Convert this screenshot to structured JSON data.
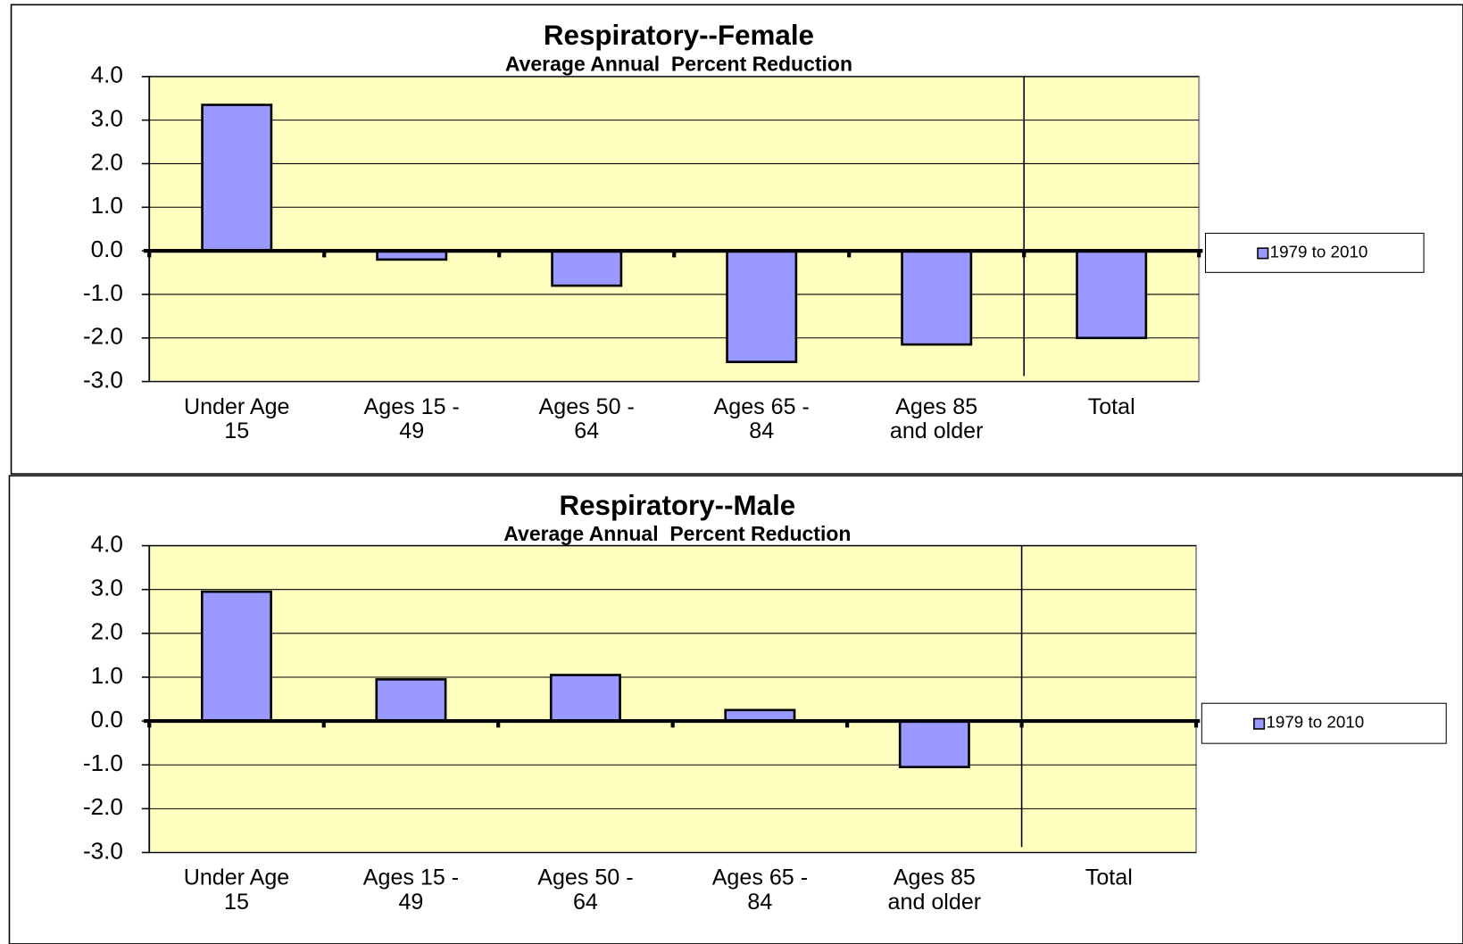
{
  "chart_data": [
    {
      "type": "bar",
      "title": "Respiratory--Female",
      "subtitle": "Average Annual  Percent Reduction",
      "categories": [
        "Under Age 15",
        "Ages 15 - 49",
        "Ages 50 - 64",
        "Ages 65 - 84",
        "Ages 85 and older",
        "Total"
      ],
      "series": [
        {
          "name": "1979 to 2010",
          "color": "#9999ff",
          "values": [
            3.35,
            -0.2,
            -0.8,
            -2.55,
            -2.15,
            -2.0
          ]
        }
      ],
      "ylim": [
        -3,
        4
      ],
      "yticks": [
        {
          "value": 4,
          "label": "4.0"
        },
        {
          "value": 3,
          "label": "3.0"
        },
        {
          "value": 2,
          "label": "2.0"
        },
        {
          "value": 1,
          "label": "1.0"
        },
        {
          "value": 0,
          "label": "0.0"
        },
        {
          "value": -1,
          "label": "-1.0"
        },
        {
          "value": -2,
          "label": "-2.0"
        },
        {
          "value": -3,
          "label": "-3.0"
        }
      ],
      "grid": true,
      "legend": "right",
      "plot_background": "#ffffc0"
    },
    {
      "type": "bar",
      "title": "Respiratory--Male",
      "subtitle": "Average Annual  Percent Reduction",
      "categories": [
        "Under Age 15",
        "Ages 15 - 49",
        "Ages 50 - 64",
        "Ages 65 - 84",
        "Ages 85 and older",
        "Total"
      ],
      "series": [
        {
          "name": "1979 to 2010",
          "color": "#9999ff",
          "values": [
            2.95,
            0.95,
            1.05,
            0.25,
            -1.05,
            null
          ]
        }
      ],
      "ylim": [
        -3,
        4
      ],
      "yticks": [
        {
          "value": 4,
          "label": "4.0"
        },
        {
          "value": 3,
          "label": "3.0"
        },
        {
          "value": 2,
          "label": "2.0"
        },
        {
          "value": 1,
          "label": "1.0"
        },
        {
          "value": 0,
          "label": "0.0"
        },
        {
          "value": -1,
          "label": "-1.0"
        },
        {
          "value": -2,
          "label": "-2.0"
        },
        {
          "value": -3,
          "label": "-3.0"
        }
      ],
      "grid": true,
      "legend": "right",
      "plot_background": "#ffffc0"
    }
  ]
}
